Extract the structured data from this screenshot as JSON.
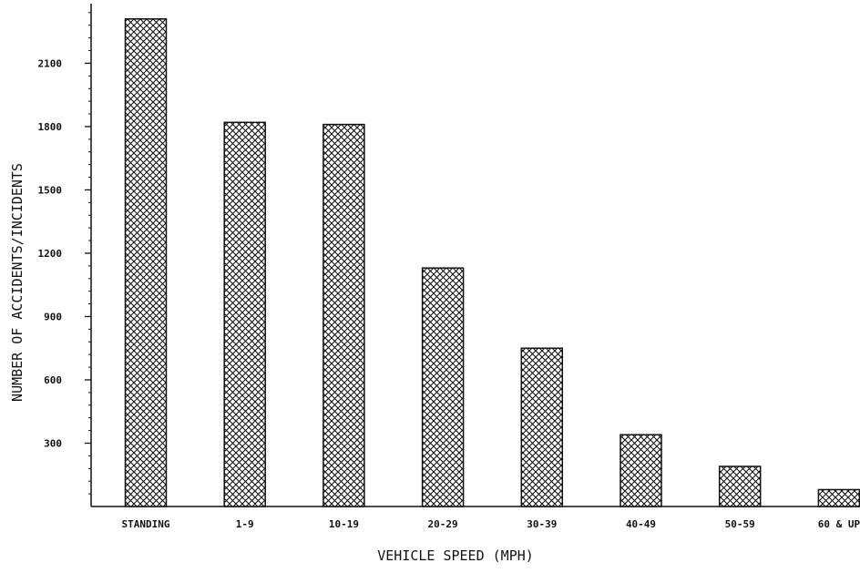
{
  "chart_data": {
    "type": "bar",
    "title": "",
    "xlabel": "VEHICLE SPEED (MPH)",
    "ylabel": "NUMBER OF ACCIDENTS/INCIDENTS",
    "categories": [
      "STANDING",
      "1-9",
      "10-19",
      "20-29",
      "30-39",
      "40-49",
      "50-59",
      "60 & UP"
    ],
    "values": [
      2310,
      1820,
      1810,
      1130,
      750,
      340,
      190,
      80
    ],
    "yticks": [
      300,
      600,
      900,
      1200,
      1500,
      1800,
      2100
    ],
    "ytick_labels": [
      "300",
      "600",
      "900",
      "1200",
      "1500",
      "1800",
      "2100"
    ],
    "ylim": [
      0,
      2400
    ],
    "grid": false,
    "legend": "none",
    "bar_pattern": "crosshatch",
    "bar_color": "#111111"
  }
}
